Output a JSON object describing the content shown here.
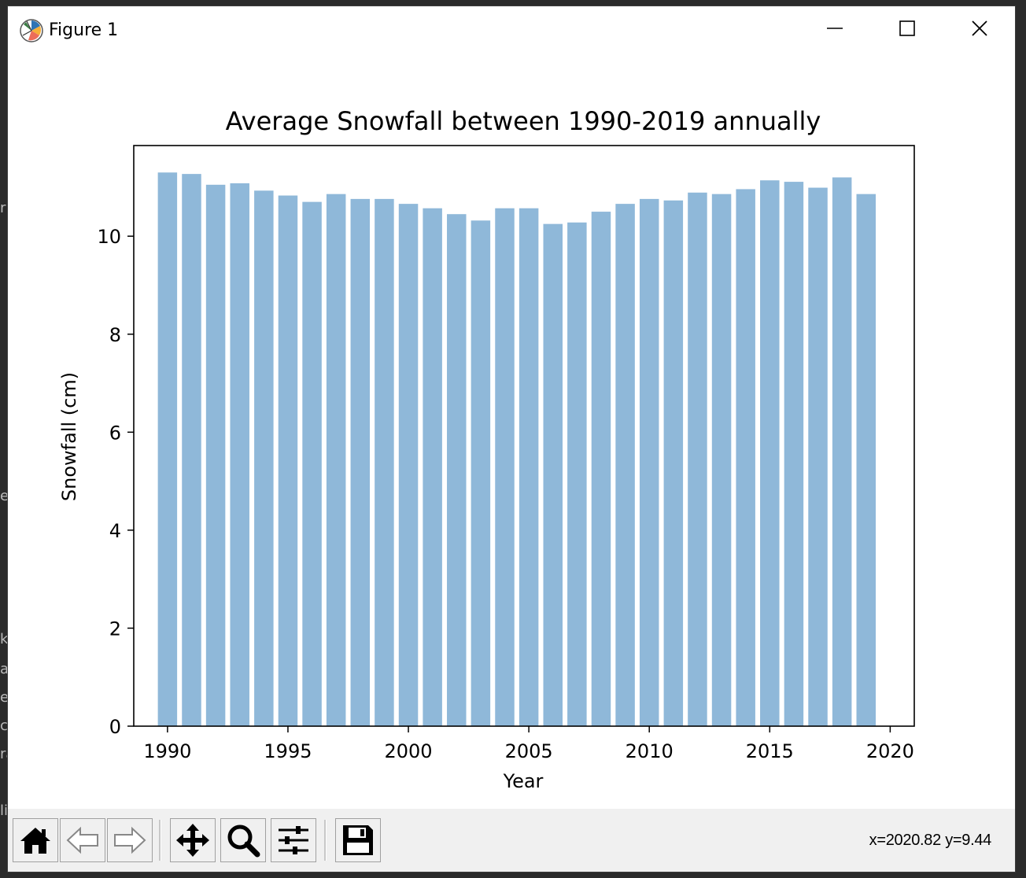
{
  "window": {
    "title": "Figure 1",
    "app_icon": "matplotlib-logo-icon",
    "controls": [
      "minimize-icon",
      "maximize-icon",
      "close-icon"
    ]
  },
  "toolbar": {
    "buttons": [
      {
        "name": "home-button",
        "icon": "home-icon"
      },
      {
        "name": "back-button",
        "icon": "arrow-left-icon"
      },
      {
        "name": "forward-button",
        "icon": "arrow-right-icon"
      },
      {
        "name": "pan-button",
        "icon": "move-arrows-icon"
      },
      {
        "name": "zoom-button",
        "icon": "magnifier-icon"
      },
      {
        "name": "configure-subplots-button",
        "icon": "sliders-icon"
      },
      {
        "name": "save-button",
        "icon": "floppy-disk-icon"
      }
    ],
    "coordinates": "x=2020.82 y=9.44"
  },
  "chart_data": {
    "type": "bar",
    "title": "Average Snowfall between 1990-2019 annually",
    "xlabel": "Year",
    "ylabel": "Snowfall (cm)",
    "x": [
      1990,
      1991,
      1992,
      1993,
      1994,
      1995,
      1996,
      1997,
      1998,
      1999,
      2000,
      2001,
      2002,
      2003,
      2004,
      2005,
      2006,
      2007,
      2008,
      2009,
      2010,
      2011,
      2012,
      2013,
      2014,
      2015,
      2016,
      2017,
      2018,
      2019
    ],
    "values": [
      11.3,
      11.27,
      11.05,
      11.08,
      10.93,
      10.83,
      10.7,
      10.86,
      10.76,
      10.76,
      10.66,
      10.57,
      10.45,
      10.32,
      10.57,
      10.57,
      10.25,
      10.28,
      10.5,
      10.66,
      10.76,
      10.73,
      10.89,
      10.86,
      10.96,
      11.14,
      11.11,
      10.99,
      11.2,
      10.86
    ],
    "xlim": [
      1988.6,
      2021.0
    ],
    "ylim": [
      0,
      11.85
    ],
    "xticks": [
      1990,
      1995,
      2000,
      2005,
      2010,
      2015,
      2020
    ],
    "yticks": [
      0,
      2,
      4,
      6,
      8,
      10
    ],
    "bar_color": "#8fb8d9",
    "grid": false,
    "legend": "none"
  },
  "backdrop": {
    "fragments": [
      "r",
      "er",
      "k",
      "at",
      "e",
      "c",
      "ra",
      "li"
    ]
  }
}
